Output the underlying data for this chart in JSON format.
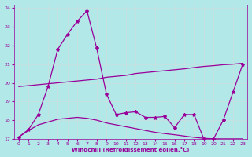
{
  "xlabel": "Windchill (Refroidissement éolien,°C)",
  "background_color": "#b2e8e8",
  "line_color": "#990099",
  "grid_color": "#c8e0e0",
  "xlim": [
    -0.5,
    23.5
  ],
  "ylim": [
    17,
    24.2
  ],
  "yticks": [
    17,
    18,
    19,
    20,
    21,
    22,
    23,
    24
  ],
  "xticks": [
    0,
    1,
    2,
    3,
    4,
    5,
    6,
    7,
    8,
    9,
    10,
    11,
    12,
    13,
    14,
    15,
    16,
    17,
    18,
    19,
    20,
    21,
    22,
    23
  ],
  "curve1_x": [
    0,
    1,
    2,
    3,
    4,
    5,
    6,
    7,
    8,
    9,
    10,
    11,
    12,
    13,
    14,
    15,
    16,
    17,
    18,
    19,
    20,
    21,
    22,
    23
  ],
  "curve1_y": [
    17.1,
    17.5,
    18.3,
    19.8,
    21.8,
    22.6,
    23.3,
    23.85,
    21.85,
    19.4,
    18.3,
    18.4,
    18.45,
    18.15,
    18.15,
    18.2,
    17.6,
    18.3,
    18.3,
    17.0,
    17.0,
    18.0,
    19.5,
    21.0
  ],
  "curve2_x": [
    0,
    1,
    2,
    3,
    4,
    5,
    6,
    7,
    8,
    9,
    10,
    11,
    12,
    13,
    14,
    15,
    16,
    17,
    18,
    19,
    20,
    21,
    22,
    23
  ],
  "curve2_y": [
    19.8,
    19.85,
    19.9,
    19.95,
    20.0,
    20.05,
    20.1,
    20.15,
    20.2,
    20.3,
    20.35,
    20.4,
    20.5,
    20.55,
    20.6,
    20.65,
    20.7,
    20.75,
    20.82,
    20.88,
    20.92,
    20.97,
    21.0,
    21.05
  ],
  "curve3_x": [
    0,
    1,
    2,
    3,
    4,
    5,
    6,
    7,
    8,
    9,
    10,
    11,
    12,
    13,
    14,
    15,
    16,
    17,
    18,
    19,
    20,
    21,
    22,
    23
  ],
  "curve3_y": [
    17.1,
    17.45,
    17.75,
    17.9,
    18.05,
    18.1,
    18.15,
    18.1,
    18.0,
    17.85,
    17.75,
    17.65,
    17.55,
    17.45,
    17.35,
    17.28,
    17.22,
    17.15,
    17.08,
    17.03,
    17.0,
    17.0,
    17.0,
    17.0
  ],
  "markersize": 3,
  "linewidth": 0.9
}
